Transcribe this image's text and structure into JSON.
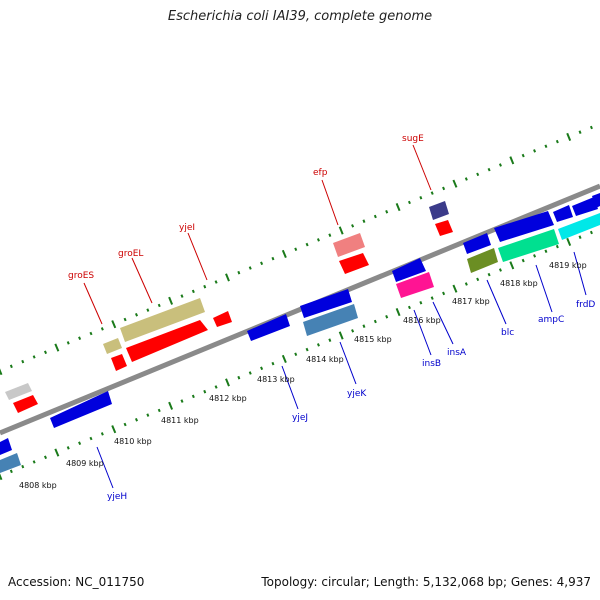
{
  "title": "Escherichia coli IAI39, complete genome",
  "footer": {
    "accession": "Accession: NC_011750",
    "summary": "Topology: circular; Length: 5,132,068 bp; Genes: 4,937"
  },
  "colors": {
    "backbone": "#8a8a8a",
    "tick": "#1a7a1a",
    "top_label": "#cc0000",
    "bottom_label": "#0000cc"
  },
  "scale_labels": [
    "4808 kbp",
    "4809 kbp",
    "4810 kbp",
    "4811 kbp",
    "4812 kbp",
    "4813 kbp",
    "4814 kbp",
    "4815 kbp",
    "4816 kbp",
    "4817 kbp",
    "4818 kbp",
    "4819 kbp"
  ],
  "gene_labels_top": [
    "groES",
    "groEL",
    "yjeI",
    "efp",
    "sugE"
  ],
  "gene_labels_bottom": [
    "yjeH",
    "yjeJ",
    "yjeK",
    "insB",
    "insA",
    "blc",
    "ampC",
    "frdD"
  ]
}
